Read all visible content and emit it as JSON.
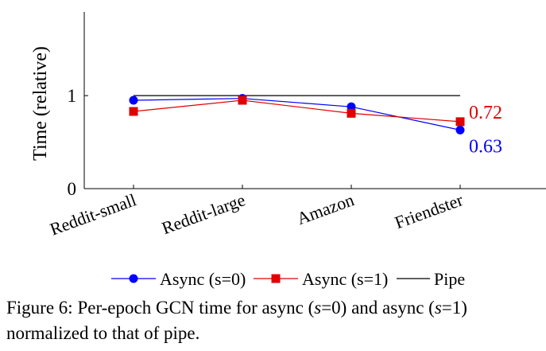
{
  "chart_data": {
    "type": "line",
    "categories": [
      "Reddit-small",
      "Reddit-large",
      "Amazon",
      "Friendster"
    ],
    "ylabel": "Time (relative)",
    "xlabel": "",
    "ylim": [
      0,
      1.9
    ],
    "yticks": [
      0,
      1
    ],
    "ytick_labels": [
      "0",
      "1"
    ],
    "grid": false,
    "legend_position": "bottom",
    "series": [
      {
        "name": "Async (s=0)",
        "values": [
          0.95,
          0.97,
          0.88,
          0.63
        ],
        "color": "#0000ff",
        "marker": "circle"
      },
      {
        "name": "Async (s=1)",
        "values": [
          0.83,
          0.95,
          0.81,
          0.72
        ],
        "color": "#e00000",
        "marker": "square"
      },
      {
        "name": "Pipe",
        "values": [
          1.0,
          1.0,
          1.0,
          1.0
        ],
        "color": "#000000",
        "marker": "none"
      }
    ],
    "annotations": [
      {
        "text": "0.72",
        "series": "Async (s=1)",
        "category": "Friendster",
        "color": "#e00000"
      },
      {
        "text": "0.63",
        "series": "Async (s=0)",
        "category": "Friendster",
        "color": "#0000ff"
      }
    ]
  },
  "caption": {
    "prefix": "Figure 6: Per-epoch GCN time for async (",
    "var1": "s",
    "mid1": "=0) and async (",
    "var2": "s",
    "suffix": "=1) normalized to that of pipe."
  }
}
